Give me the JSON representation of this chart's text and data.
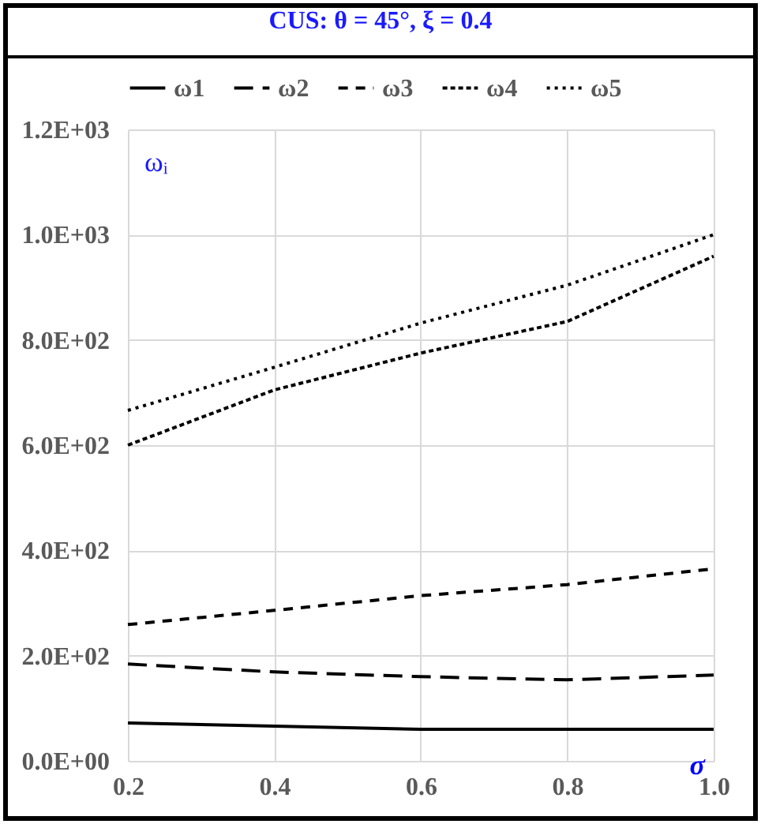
{
  "chart_data": {
    "type": "line",
    "title": "CUS: θ = 45°, ξ = 0.4",
    "xlabel": "σ",
    "ylabel": "ωᵢ",
    "x": [
      0.2,
      0.4,
      0.6,
      0.8,
      1.0
    ],
    "series": [
      {
        "name": "ω1",
        "color": "#000000",
        "line_style": "solid",
        "values": [
          72,
          66,
          60,
          60,
          60
        ]
      },
      {
        "name": "ω2",
        "color": "#000000",
        "line_style": "dashed",
        "values": [
          184,
          169,
          160,
          154,
          163
        ]
      },
      {
        "name": "ω3",
        "color": "#000000",
        "line_style": "dashed",
        "values": [
          259,
          286,
          314,
          335,
          365
        ]
      },
      {
        "name": "ω4",
        "color": "#000000",
        "line_style": "dashed",
        "values": [
          600,
          705,
          775,
          835,
          959
        ]
      },
      {
        "name": "ω5",
        "color": "#000000",
        "line_style": "dotted",
        "values": [
          666,
          748,
          832,
          904,
          1000
        ]
      }
    ],
    "xlim": [
      0.2,
      1.0
    ],
    "xticks": [
      {
        "value": 0.2,
        "label": "0.2"
      },
      {
        "value": 0.4,
        "label": "0.4"
      },
      {
        "value": 0.6,
        "label": "0.6"
      },
      {
        "value": 0.8,
        "label": "0.8"
      },
      {
        "value": 1.0,
        "label": "1.0"
      }
    ],
    "ylim": [
      0,
      1200
    ],
    "yticks": [
      {
        "value": 0,
        "label": "0.0E+00"
      },
      {
        "value": 200,
        "label": "2.0E+02"
      },
      {
        "value": 400,
        "label": "4.0E+02"
      },
      {
        "value": 600,
        "label": "6.0E+02"
      },
      {
        "value": 800,
        "label": "8.0E+02"
      },
      {
        "value": 1000,
        "label": "1.0E+03"
      },
      {
        "value": 1200,
        "label": "1.2E+03"
      }
    ],
    "grid": true,
    "legend": "top",
    "marker": "none"
  }
}
